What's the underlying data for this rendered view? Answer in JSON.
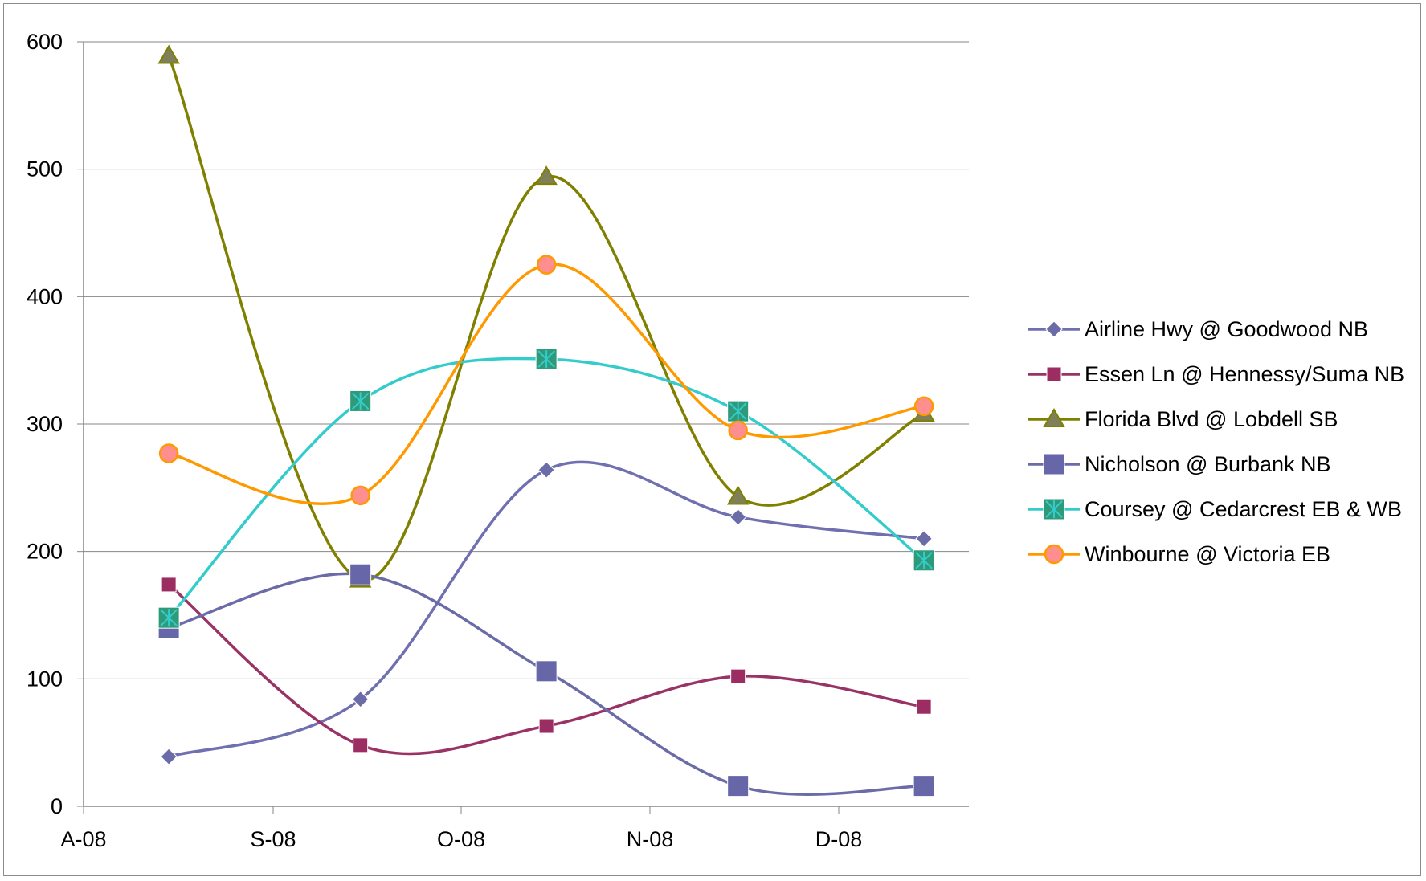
{
  "chart_data": {
    "type": "line",
    "title": "",
    "xlabel": "",
    "ylabel": "",
    "ylim": [
      0,
      600
    ],
    "y_ticks": [
      "0",
      "100",
      "200",
      "300",
      "400",
      "500",
      "600"
    ],
    "x_ticks": [
      "A-08",
      "S-08",
      "O-08",
      "N-08",
      "D-08"
    ],
    "x": [
      "2008-08-15",
      "2008-09-15",
      "2008-10-15",
      "2008-11-15",
      "2008-12-15"
    ],
    "grid": "horizontal",
    "legend": "right",
    "smooth": true,
    "series": [
      {
        "name": "Airline Hwy @ Goodwood NB",
        "color": "#7070b0",
        "marker": "diamond",
        "values": [
          39,
          84,
          264,
          227,
          210
        ]
      },
      {
        "name": "Essen Ln @ Hennessy/Suma NB",
        "color": "#993366",
        "marker": "square",
        "values": [
          174,
          48,
          63,
          102,
          78
        ]
      },
      {
        "name": "Florida Blvd @ Lobdell SB",
        "color": "#808000",
        "marker": "triangle",
        "values": [
          589,
          178,
          494,
          243,
          308
        ]
      },
      {
        "name": "Nicholson @ Burbank NB",
        "color": "#6b6ba8",
        "marker": "big-square",
        "values": [
          140,
          182,
          106,
          16,
          16
        ]
      },
      {
        "name": "Coursey @ Cedarcrest EB & WB",
        "color": "#33cccc",
        "marker": "star-box",
        "values": [
          148,
          318,
          351,
          310,
          193
        ]
      },
      {
        "name": "Winbourne @ Victoria EB",
        "color": "#ff9900",
        "marker": "circle",
        "values": [
          277,
          244,
          425,
          295,
          314
        ]
      }
    ]
  }
}
